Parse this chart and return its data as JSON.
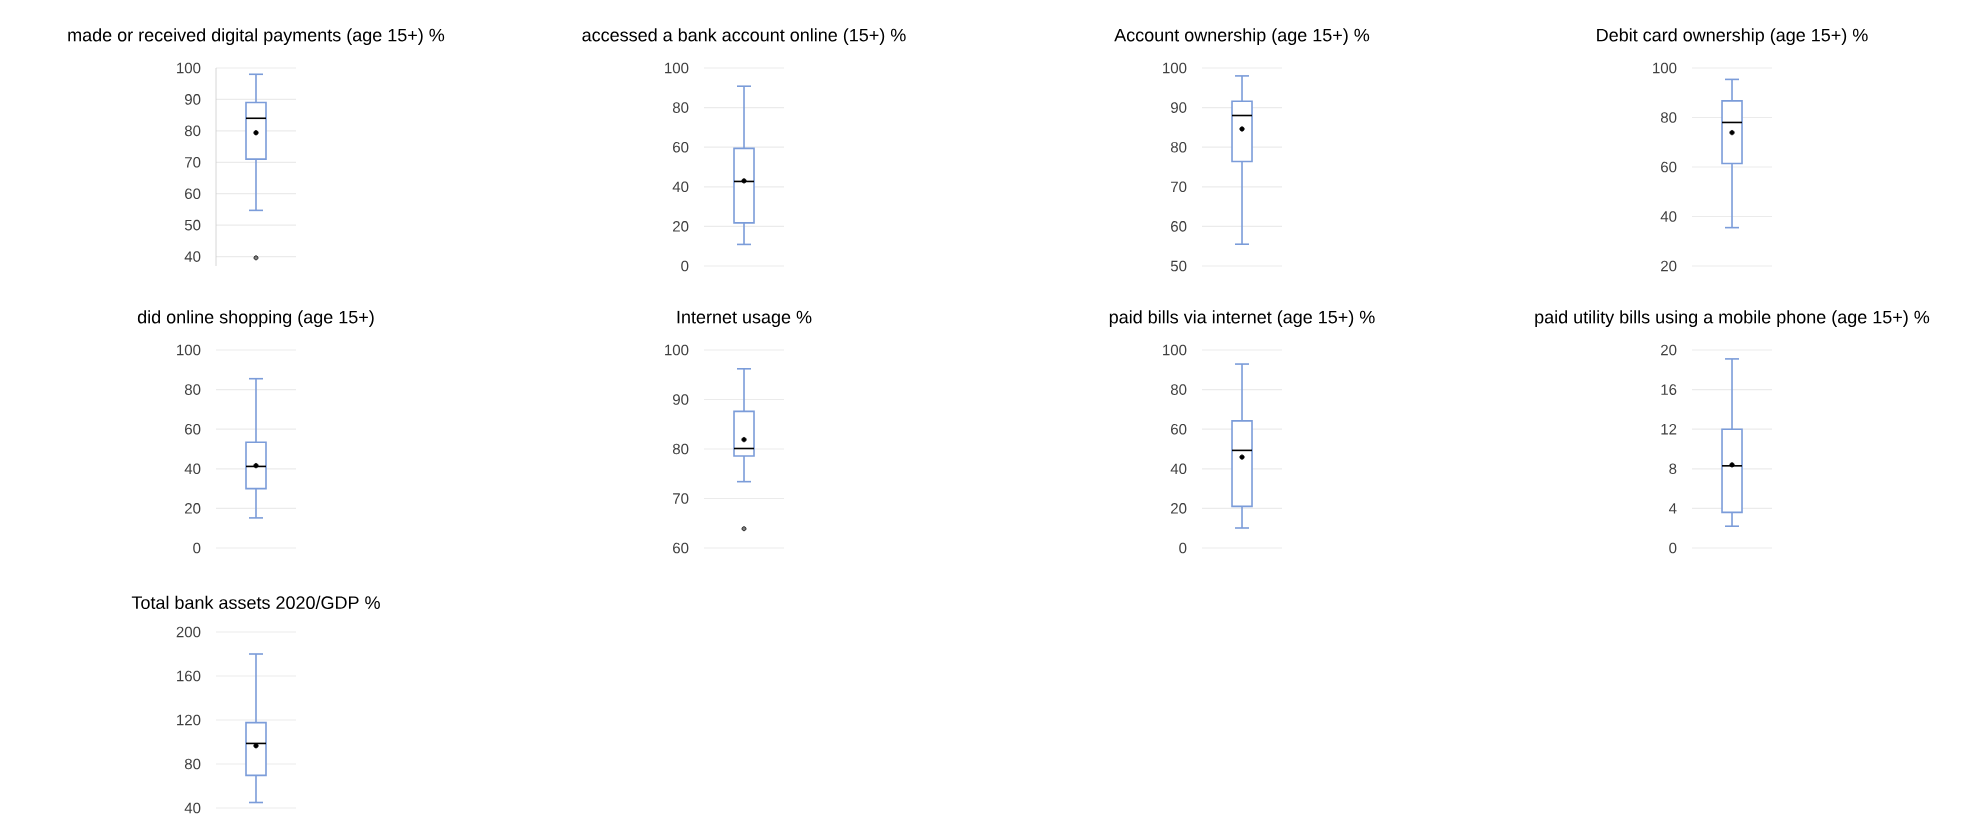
{
  "chart_data": [
    {
      "type": "box",
      "title": "made or received digital payments (age 15+) %",
      "categories": [
        null
      ],
      "color": "#7b9cd9",
      "boxes": [
        {
          "low": 54.7,
          "q1": 71,
          "median": 84,
          "q3": 89,
          "high": 98,
          "mean": 79.4,
          "outliers": [
            39.6
          ]
        }
      ],
      "ylim": [
        37,
        100
      ],
      "yticks": [
        40,
        50,
        60,
        70,
        80,
        90,
        100
      ],
      "grid": "y",
      "tick_labels": "y"
    },
    {
      "type": "box",
      "title": "accessed a bank account online (15+) %",
      "categories": [
        null
      ],
      "color": "#7b9cd9",
      "boxes": [
        {
          "low": 10.9,
          "q1": 21.8,
          "median": 42.7,
          "q3": 59.4,
          "high": 90.8,
          "mean": 43
        }
      ],
      "ylim": [
        0,
        100
      ],
      "yticks": [
        0,
        20,
        40,
        60,
        80,
        100
      ],
      "grid": "y",
      "tick_labels": "y"
    },
    {
      "type": "box",
      "title": "Account ownership (age 15+) %",
      "categories": [
        null
      ],
      "color": "#7b9cd9",
      "boxes": [
        {
          "low": 55.5,
          "q1": 76.4,
          "median": 88,
          "q3": 91.6,
          "high": 98,
          "mean": 84.6
        }
      ],
      "ylim": [
        50,
        100
      ],
      "yticks": [
        50,
        60,
        70,
        80,
        90,
        100
      ],
      "grid": "y",
      "tick_labels": "y"
    },
    {
      "type": "box",
      "title": "Debit card ownership (age 15+) %",
      "categories": [
        null
      ],
      "color": "#7b9cd9",
      "boxes": [
        {
          "low": 35.5,
          "q1": 61.4,
          "median": 78,
          "q3": 86.7,
          "high": 95.4,
          "mean": 73.9
        }
      ],
      "ylim": [
        20,
        100
      ],
      "yticks": [
        20,
        40,
        60,
        80,
        100
      ],
      "grid": "y",
      "tick_labels": "y"
    },
    {
      "type": "box",
      "title": "did online shopping (age 15+)",
      "categories": [
        null
      ],
      "color": "#7b9cd9",
      "boxes": [
        {
          "low": 15.2,
          "q1": 30,
          "median": 41.2,
          "q3": 53.4,
          "high": 85.5,
          "mean": 41.6
        }
      ],
      "ylim": [
        0,
        100
      ],
      "yticks": [
        0,
        20,
        40,
        60,
        80,
        100
      ],
      "grid": "y",
      "tick_labels": "y"
    },
    {
      "type": "box",
      "title": "Internet usage %",
      "categories": [
        null
      ],
      "color": "#7b9cd9",
      "boxes": [
        {
          "low": 73.4,
          "q1": 78.6,
          "median": 80.1,
          "q3": 87.6,
          "high": 96.2,
          "mean": 81.9,
          "outliers": [
            63.9
          ]
        }
      ],
      "ylim": [
        60,
        100
      ],
      "yticks": [
        60,
        70,
        80,
        90,
        100
      ],
      "grid": "y",
      "tick_labels": "y"
    },
    {
      "type": "box",
      "title": "paid bills via internet (age 15+) %",
      "categories": [
        null
      ],
      "color": "#7b9cd9",
      "boxes": [
        {
          "low": 10.1,
          "q1": 21,
          "median": 49.3,
          "q3": 64.2,
          "high": 92.9,
          "mean": 45.9
        }
      ],
      "ylim": [
        0,
        100
      ],
      "yticks": [
        0,
        20,
        40,
        60,
        80,
        100
      ],
      "grid": "y",
      "tick_labels": "y"
    },
    {
      "type": "box",
      "title": "paid utility bills using a mobile phone (age 15+) %",
      "categories": [
        null
      ],
      "color": "#7b9cd9",
      "boxes": [
        {
          "low": 2.2,
          "q1": 3.6,
          "median": 8.3,
          "q3": 12,
          "high": 19.1,
          "mean": 8.4
        }
      ],
      "ylim": [
        0,
        20
      ],
      "yticks": [
        0,
        4,
        8,
        12,
        16,
        20
      ],
      "grid": "y",
      "tick_labels": "y"
    },
    {
      "type": "box",
      "title": "Total bank assets 2020/GDP %",
      "categories": [
        null
      ],
      "color": "#7b9cd9",
      "boxes": [
        {
          "low": 45,
          "q1": 69.7,
          "median": 98.7,
          "q3": 117.6,
          "high": 180,
          "mean": 96.6
        }
      ],
      "ylim": [
        40,
        200
      ],
      "yticks": [
        40,
        80,
        120,
        160,
        200
      ],
      "grid": "y",
      "tick_labels": "y"
    }
  ]
}
